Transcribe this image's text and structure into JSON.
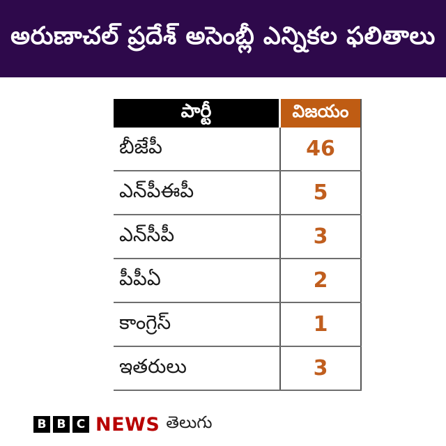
{
  "banner": {
    "title": "అరుణాచల్ ప్రదేశ్ అసెంబ్లీ ఎన్నికల ఫలితాలు"
  },
  "table": {
    "columns": {
      "party": "పార్టీ",
      "wins": "విజయం"
    },
    "rows": [
      {
        "party": "బీజేపీ",
        "wins": "46"
      },
      {
        "party": "ఎన్‌పీఈపీ",
        "wins": "5"
      },
      {
        "party": "ఎన్‌సీపీ",
        "wins": "3"
      },
      {
        "party": "పీపీఏ",
        "wins": "2"
      },
      {
        "party": "కాంగ్రెస్",
        "wins": "1"
      },
      {
        "party": "ఇతరులు",
        "wins": "3"
      }
    ]
  },
  "footer": {
    "logo_letters": [
      "B",
      "B",
      "C"
    ],
    "news_label": "NEWS",
    "language_label": "తెలుగు"
  },
  "colors": {
    "page_bg": "#ffffff",
    "banner_bg": "#2e094b",
    "banner_text": "#ffffff",
    "party_header_bg": "#000000",
    "wins_header_bg": "#bf5c13",
    "header_text": "#ffffff",
    "party_text": "#1a1a1a",
    "value_text": "#c05e1e",
    "row_line": "#6e6e6e",
    "column_line": "#555555",
    "bbc_red": "#b80000"
  },
  "chart_data": {
    "type": "table",
    "title": "అరుణాచల్ ప్రదేశ్ అసెంబ్లీ ఎన్నికల ఫలితాలు",
    "columns": [
      "పార్టీ",
      "విజయం"
    ],
    "categories": [
      "బీజేపీ",
      "ఎన్‌పీఈపీ",
      "ఎన్‌సీపీ",
      "పీపీఏ",
      "కాంగ్రెస్",
      "ఇతరులు"
    ],
    "values": [
      46,
      5,
      3,
      2,
      1,
      3
    ],
    "source": "BBC NEWS తెలుగు"
  }
}
